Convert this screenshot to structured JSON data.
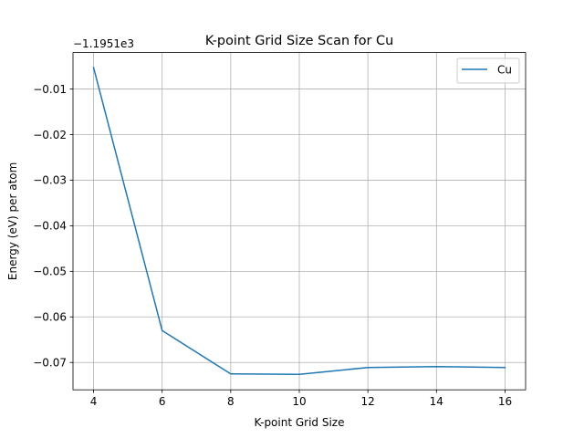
{
  "chart_data": {
    "type": "line",
    "title": "K-point Grid Size Scan for Cu",
    "xlabel": "K-point Grid Size",
    "ylabel": "Energy (eV) per atom",
    "y_offset_label": "−1.1951e3",
    "x": [
      4,
      6,
      8,
      10,
      12,
      14,
      16
    ],
    "series": [
      {
        "name": "Cu",
        "color": "#1f77b4",
        "values": [
          -0.0053,
          -0.063,
          -0.0725,
          -0.0726,
          -0.0711,
          -0.0709,
          -0.0711
        ]
      }
    ],
    "xlim": [
      3.4,
      16.6
    ],
    "ylim": [
      -0.076,
      -0.002
    ],
    "xticks": [
      4,
      6,
      8,
      10,
      12,
      14,
      16
    ],
    "xtick_labels": [
      "4",
      "6",
      "8",
      "10",
      "12",
      "14",
      "16"
    ],
    "yticks": [
      -0.01,
      -0.02,
      -0.03,
      -0.04,
      -0.05,
      -0.06,
      -0.07
    ],
    "ytick_labels": [
      "−0.01",
      "−0.02",
      "−0.03",
      "−0.04",
      "−0.05",
      "−0.06",
      "−0.07"
    ],
    "grid": true,
    "legend_position": "top-right"
  }
}
